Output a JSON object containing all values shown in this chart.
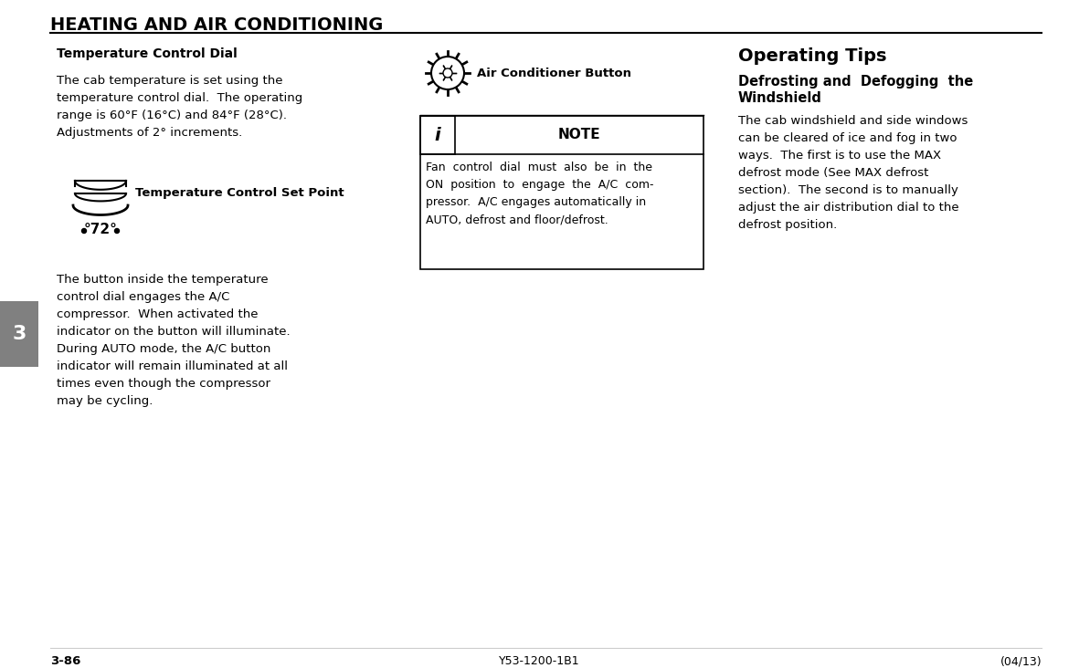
{
  "title": "HEATING AND AIR CONDITIONING",
  "page_bg": "#ffffff",
  "tab_color": "#808080",
  "tab_number": "3",
  "footer_page": "3-86",
  "footer_center": "Y53-1200-1B1",
  "footer_right": "(04/13)",
  "col1_heading": "Temperature Control Dial",
  "col1_para1_line1": "The cab temperature is set using the",
  "col1_para1_line2": "temperature control dial.  The operating",
  "col1_para1_line3": "range is 60°F (16°C) and 84°F (28°C).",
  "col1_para1_line4": "Adjustments of 2° increments.",
  "col1_dial_label": "Temperature Control Set Point",
  "col1_dial_text": "°72°",
  "col1_para2_line1": "The button inside the temperature",
  "col1_para2_line2": "control dial engages the A/C",
  "col1_para2_line3": "compressor.  When activated the",
  "col1_para2_line4": "indicator on the button will illuminate.",
  "col1_para2_line5": "During AUTO mode, the A/C button",
  "col1_para2_line6": "indicator will remain illuminated at all",
  "col1_para2_line7": "times even though the compressor",
  "col1_para2_line8": "may be cycling.",
  "col2_icon_label": "Air Conditioner Button",
  "note_title": "NOTE",
  "note_line1": "Fan  control  dial  must  also  be  in  the",
  "note_line2": "ON  position  to  engage  the  A/C  com-",
  "note_line3": "pressor.  A/C engages automatically in",
  "note_line4": "AUTO, defrost and floor/defrost.",
  "col3_heading1": "Operating Tips",
  "col3_heading2": "Defrosting and  Defogging  the",
  "col3_heading3": "Windshield",
  "col3_para_line1": "The cab windshield and side windows",
  "col3_para_line2": "can be cleared of ice and fog in two",
  "col3_para_line3": "ways.  The first is to use the MAX",
  "col3_para_line4": "defrost mode (See MAX defrost",
  "col3_para_line5": "section).  The second is to manually",
  "col3_para_line6": "adjust the air distribution dial to the",
  "col3_para_line7": "defrost position."
}
